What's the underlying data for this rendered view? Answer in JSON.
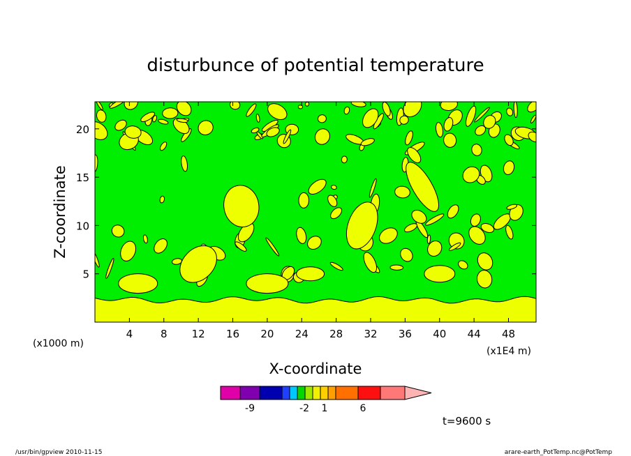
{
  "chart_data": {
    "type": "heatmap",
    "title": "disturbunce of potential temperature",
    "xlabel": "X-coordinate",
    "ylabel": "Z-coordinate",
    "x_unit_label": "(x1000 m)",
    "x_scale_label": "(x1E4 m)",
    "xlim": [
      0,
      51.2
    ],
    "ylim": [
      0,
      22.8
    ],
    "x_ticks": [
      "4",
      "8",
      "12",
      "16",
      "20",
      "24",
      "28",
      "32",
      "36",
      "40",
      "44",
      "48"
    ],
    "y_ticks": [
      "5",
      "10",
      "15",
      "20"
    ],
    "colorbar": {
      "colors": [
        "#e000a8",
        "#8000b0",
        "#0000b0",
        "#2040ff",
        "#00c8ff",
        "#00d800",
        "#a0e800",
        "#f0f000",
        "#ffd000",
        "#ffa000",
        "#ff7000",
        "#ff1010",
        "#ff7878",
        "#ffb4b4"
      ],
      "tick_labels": [
        "-9",
        "-2",
        "1",
        "6"
      ]
    },
    "background_color": "#00ee00",
    "anomaly_color": "#eeff00",
    "surface_layer": {
      "z_top": 2.3
    },
    "time_label": "t=9600 s"
  },
  "footer": {
    "left": "/usr/bin/gpview   2010-11-15",
    "right": "arare-earth_PotTemp.nc@PotTemp"
  }
}
